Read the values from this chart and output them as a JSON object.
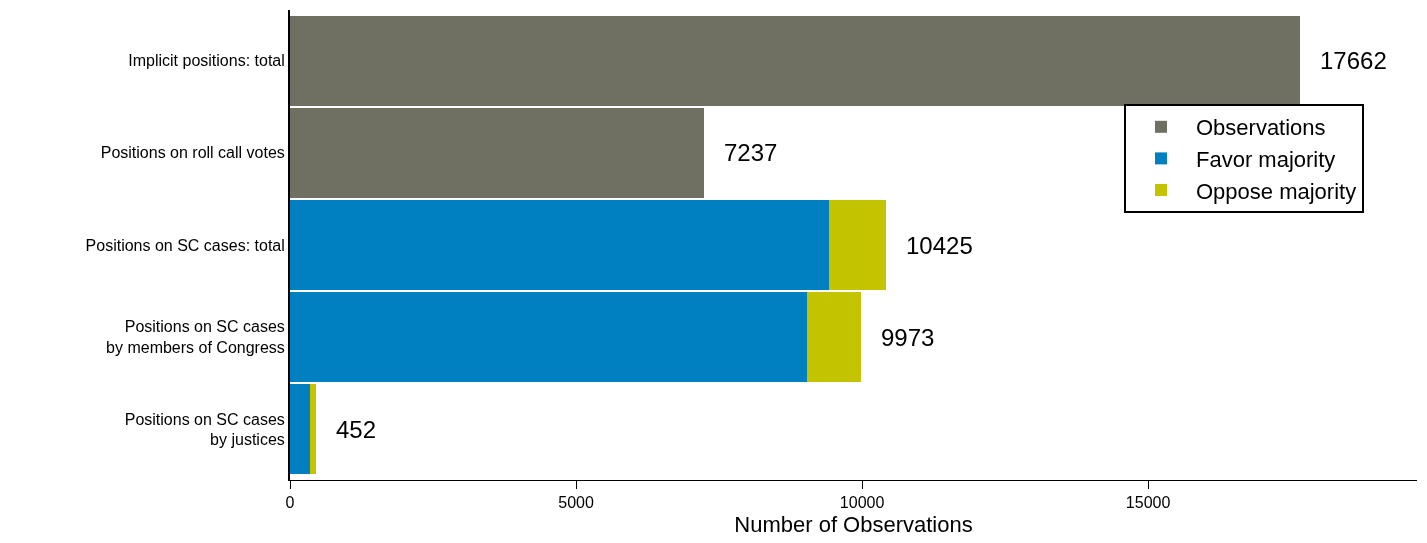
{
  "chart_data": {
    "type": "bar",
    "orientation": "horizontal",
    "stacked": true,
    "xlabel": "Number of Observations",
    "categories": [
      "Implicit positions: total",
      "Positions on roll call votes",
      "Positions on SC cases: total",
      "Positions on SC cases\nby members of Congress",
      "Positions on SC cases\nby justices"
    ],
    "series": [
      {
        "name": "Observations",
        "color": "#6f6f62",
        "values": [
          17662,
          7237,
          null,
          null,
          null
        ]
      },
      {
        "name": "Favor majority",
        "color": "#0080c0",
        "values": [
          null,
          null,
          9430,
          9040,
          356
        ]
      },
      {
        "name": "Oppose majority",
        "color": "#c3c300",
        "values": [
          null,
          null,
          995,
          933,
          96
        ]
      }
    ],
    "totals": [
      "17662",
      "7237",
      "10425",
      "9973",
      "452"
    ],
    "xlim": [
      0,
      19700
    ],
    "xticks": [
      0,
      5000,
      10000,
      15000
    ],
    "legend": "right"
  }
}
